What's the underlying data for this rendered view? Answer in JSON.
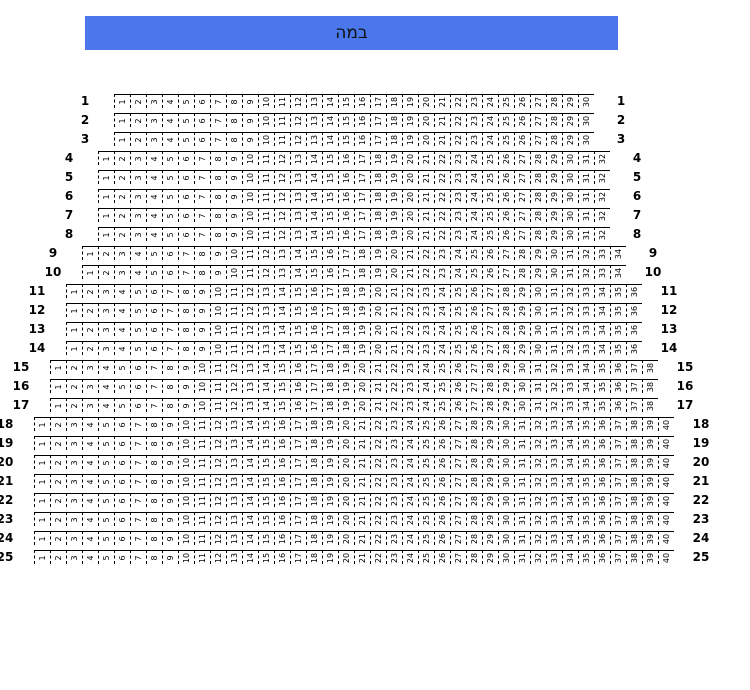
{
  "stage": {
    "label": "במה",
    "color": "#4a78ec"
  },
  "rows": [
    {
      "label": "1",
      "seats": 30
    },
    {
      "label": "2",
      "seats": 30
    },
    {
      "label": "3",
      "seats": 30
    },
    {
      "label": "4",
      "seats": 32
    },
    {
      "label": "5",
      "seats": 32
    },
    {
      "label": "6",
      "seats": 32
    },
    {
      "label": "7",
      "seats": 32
    },
    {
      "label": "8",
      "seats": 32
    },
    {
      "label": "9",
      "seats": 34
    },
    {
      "label": "10",
      "seats": 34
    },
    {
      "label": "11",
      "seats": 36
    },
    {
      "label": "12",
      "seats": 36
    },
    {
      "label": "13",
      "seats": 36
    },
    {
      "label": "14",
      "seats": 36
    },
    {
      "label": "15",
      "seats": 38
    },
    {
      "label": "16",
      "seats": 38
    },
    {
      "label": "17",
      "seats": 38
    },
    {
      "label": "18",
      "seats": 40
    },
    {
      "label": "19",
      "seats": 40
    },
    {
      "label": "20",
      "seats": 40
    },
    {
      "label": "21",
      "seats": 40
    },
    {
      "label": "22",
      "seats": 40
    },
    {
      "label": "23",
      "seats": 40
    },
    {
      "label": "24",
      "seats": 40
    },
    {
      "label": "25",
      "seats": 40
    }
  ]
}
